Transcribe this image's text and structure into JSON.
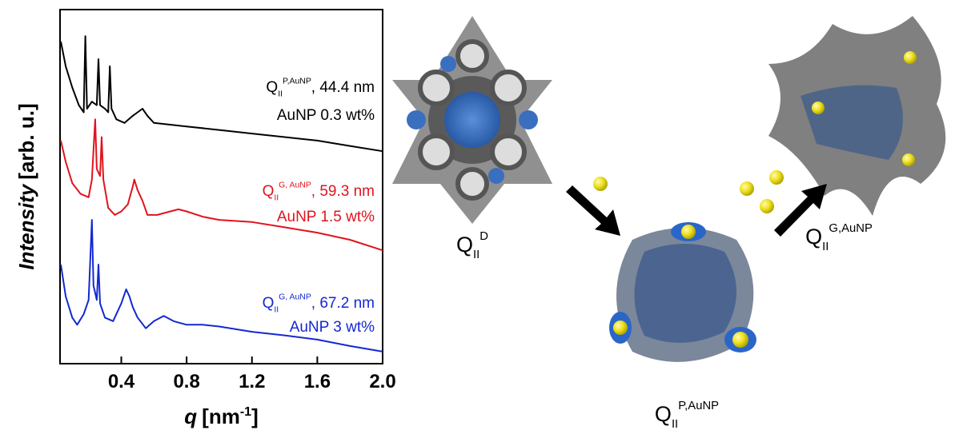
{
  "chart_data": {
    "type": "line",
    "y_label": {
      "italic": "Intensity",
      "text": "[arb. u.]"
    },
    "x_label": {
      "italic": "q",
      "text": "[nm",
      "sup": "-1",
      "end": "]"
    },
    "xlim": [
      0.025,
      2.0
    ],
    "ylim": [
      0,
      100
    ],
    "xticks": [
      0.4,
      0.8,
      1.2,
      1.6,
      {
        "value": 2,
        "label": "2.0"
      }
    ],
    "series": [
      {
        "name": "AuNP 0.3 wt%",
        "color": "#000000",
        "annotation": {
          "base": "Q",
          "sub": "II",
          "sup": "P,AuNP",
          "text": ", 44.4 nm"
        },
        "x": [
          0.03,
          0.06,
          0.1,
          0.14,
          0.17,
          0.18,
          0.19,
          0.22,
          0.25,
          0.26,
          0.27,
          0.3,
          0.32,
          0.33,
          0.34,
          0.37,
          0.42,
          0.47,
          0.5,
          0.53,
          0.56,
          0.6,
          0.7,
          0.8,
          1.0,
          1.2,
          1.4,
          1.6,
          1.8,
          2.0
        ],
        "values": [
          91,
          84,
          78,
          73,
          71,
          92.5,
          72,
          74,
          73,
          86,
          73,
          72,
          71,
          84,
          72,
          69,
          68,
          70,
          71,
          72,
          70,
          68,
          67.5,
          67,
          66,
          65,
          64,
          63,
          61.5,
          60
        ]
      },
      {
        "name": "AuNP 1.5 wt%",
        "color": "#e0141e",
        "annotation": {
          "base": "Q",
          "sub": "II",
          "sup": "G, AuNP",
          "text": ", 59.3 nm"
        },
        "x": [
          0.03,
          0.06,
          0.1,
          0.15,
          0.2,
          0.22,
          0.24,
          0.25,
          0.27,
          0.28,
          0.29,
          0.32,
          0.36,
          0.4,
          0.44,
          0.47,
          0.48,
          0.5,
          0.53,
          0.56,
          0.62,
          0.7,
          0.75,
          0.8,
          0.9,
          1.0,
          1.2,
          1.4,
          1.6,
          1.8,
          2.0
        ],
        "values": [
          63,
          57,
          51,
          48,
          47,
          52,
          69,
          55,
          53,
          64,
          52,
          44,
          42,
          43,
          45,
          50,
          52,
          49,
          46,
          42,
          42,
          43,
          43.6,
          43,
          41.5,
          40.6,
          40,
          38.5,
          37,
          35,
          32
        ]
      },
      {
        "name": "AuNP 3 wt%",
        "color": "#1428d2",
        "annotation": {
          "base": "Q",
          "sub": "II",
          "sup": "G, AuNP",
          "text": ", 67.2 nm"
        },
        "x": [
          0.03,
          0.06,
          0.1,
          0.13,
          0.17,
          0.2,
          0.22,
          0.23,
          0.24,
          0.25,
          0.26,
          0.27,
          0.3,
          0.35,
          0.4,
          0.43,
          0.45,
          0.47,
          0.5,
          0.55,
          0.6,
          0.66,
          0.72,
          0.8,
          0.9,
          1.0,
          1.2,
          1.4,
          1.6,
          1.8,
          2.0
        ],
        "values": [
          28,
          19,
          13,
          11,
          14,
          18,
          40.6,
          22,
          20,
          18,
          28,
          17,
          13,
          12,
          17,
          21,
          19,
          16,
          13,
          10,
          12,
          13.5,
          12,
          11,
          11,
          10.5,
          9,
          8,
          6.8,
          5,
          3.4
        ]
      }
    ]
  },
  "diagram": {
    "labels": [
      {
        "base": "Q",
        "sub": "II",
        "sup": "D"
      },
      {
        "base": "Q",
        "sub": "II",
        "sup": "P,AuNP"
      },
      {
        "base": "Q",
        "sub": "II",
        "sup": "G,AuNP"
      }
    ]
  }
}
